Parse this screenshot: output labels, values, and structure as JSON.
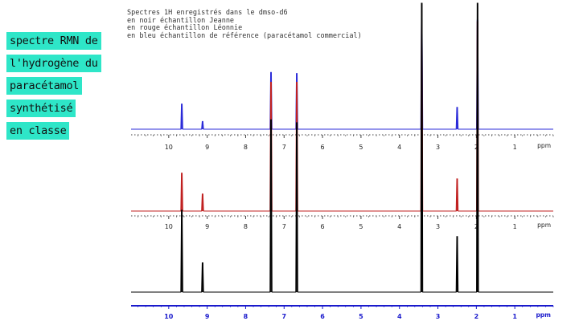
{
  "title_lines": [
    "spectre RMN de",
    "l'hydrogène du",
    "paracétamol",
    "synthétisé",
    "en classe"
  ],
  "legend_lines": [
    "Spectres 1H enregistrés dans le dmso-d6",
    "en noir échantillon Jeanne",
    "en rouge échantillon Léonnie",
    "en bleu échantillon de référence (paracétamol commercial)"
  ],
  "colors": {
    "title_highlight": "#2ee6c8",
    "blue_spectrum": "#2b2bd8",
    "red_spectrum": "#c02020",
    "black_spectrum": "#000000",
    "axis_blue": "#1a1acc"
  },
  "chart_data": {
    "type": "line",
    "xlabel": "ppm",
    "x_reversed": true,
    "xlim": [
      11,
      0
    ],
    "x_ticks": [
      10,
      9,
      8,
      7,
      6,
      5,
      4,
      3,
      2,
      1
    ],
    "ylim": [
      0,
      1
    ],
    "series": [
      {
        "color": "#2b2bd8",
        "peaks": [
          {
            "ppm": 9.66,
            "height": 0.23
          },
          {
            "ppm": 9.12,
            "height": 0.07
          },
          {
            "ppm": 7.34,
            "height": 0.52
          },
          {
            "ppm": 6.67,
            "height": 0.51
          },
          {
            "ppm": 3.42,
            "height": 1.0
          },
          {
            "ppm": 2.5,
            "height": 0.2
          },
          {
            "ppm": 1.97,
            "height": 1.0
          }
        ]
      },
      {
        "color": "#c02020",
        "peaks": [
          {
            "ppm": 9.66,
            "height": 0.2
          },
          {
            "ppm": 9.12,
            "height": 0.09
          },
          {
            "ppm": 7.34,
            "height": 0.68
          },
          {
            "ppm": 6.67,
            "height": 0.68
          },
          {
            "ppm": 3.42,
            "height": 1.0
          },
          {
            "ppm": 2.5,
            "height": 0.17
          },
          {
            "ppm": 1.97,
            "height": 1.0
          }
        ]
      },
      {
        "color": "#000000",
        "peaks": [
          {
            "ppm": 9.66,
            "height": 0.28
          },
          {
            "ppm": 9.12,
            "height": 0.1
          },
          {
            "ppm": 7.34,
            "height": 0.59
          },
          {
            "ppm": 6.67,
            "height": 0.58
          },
          {
            "ppm": 3.42,
            "height": 1.0
          },
          {
            "ppm": 2.5,
            "height": 0.19
          },
          {
            "ppm": 1.97,
            "height": 1.0
          }
        ]
      }
    ]
  }
}
